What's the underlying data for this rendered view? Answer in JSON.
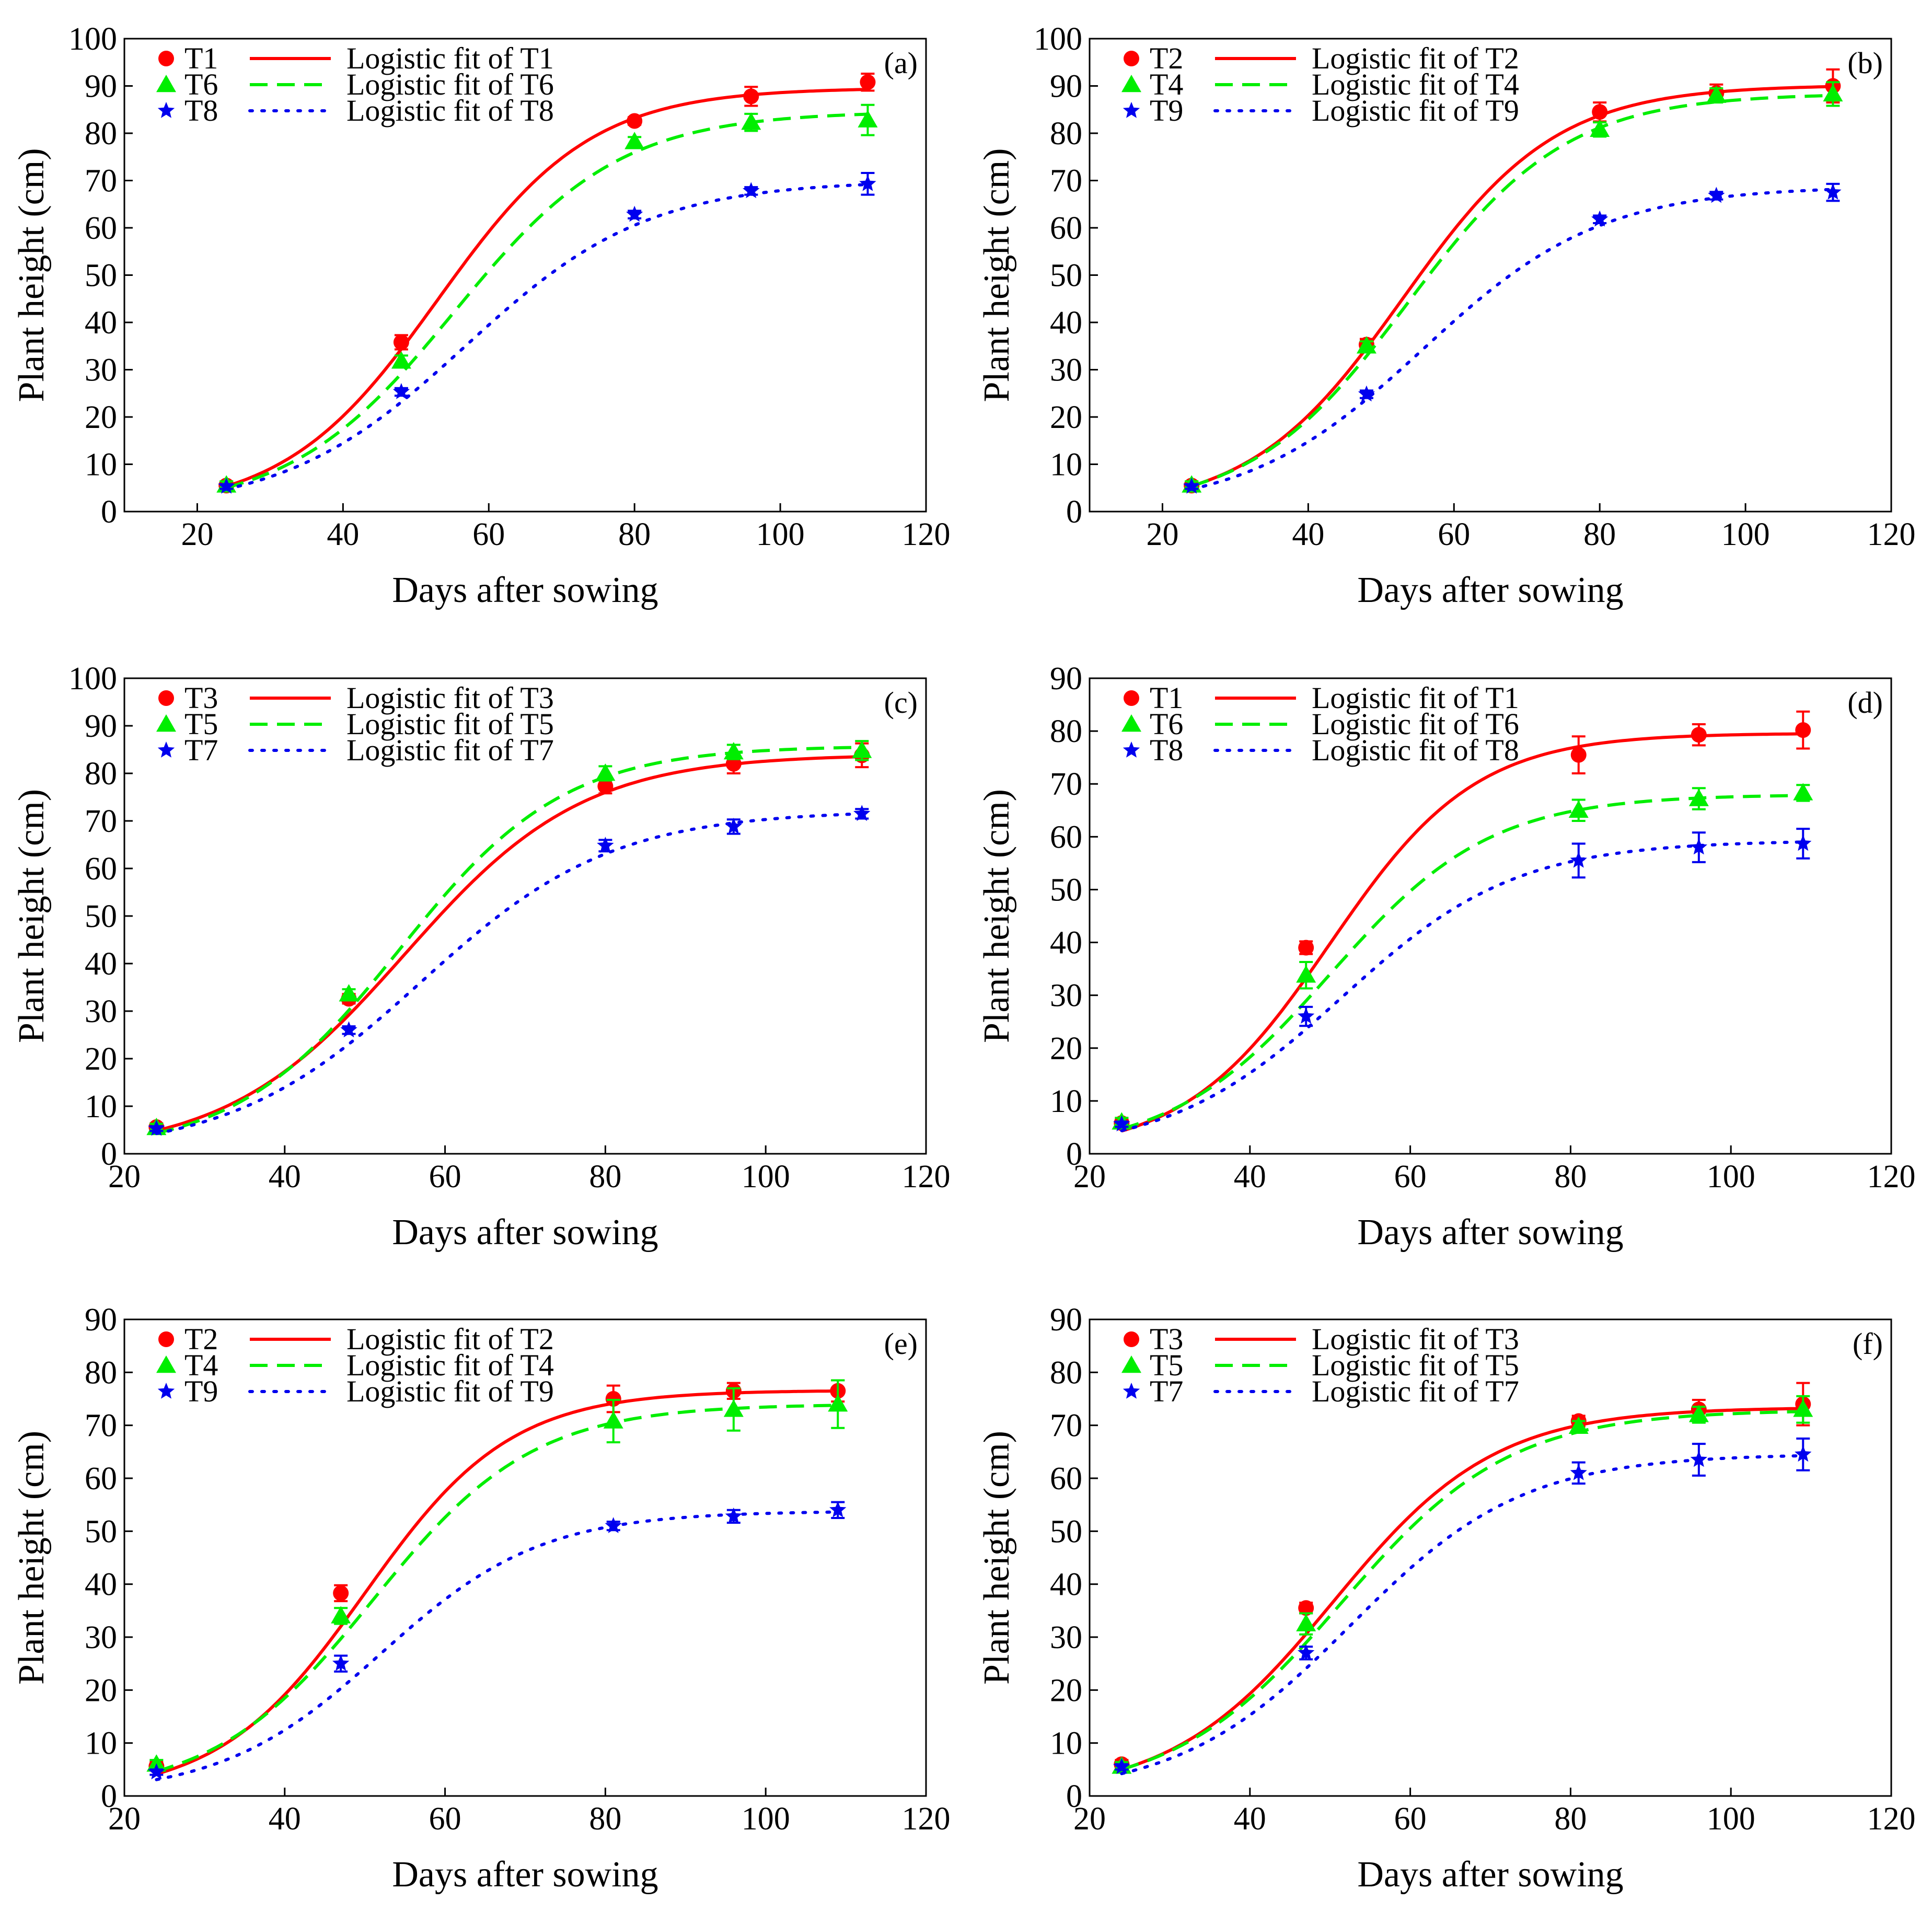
{
  "figure": {
    "description_free": true
  },
  "chart_data": [
    {
      "type": "line",
      "panel": "(a)",
      "xlabel": "Days after sowing",
      "ylabel": "Plant height (cm)",
      "xlim": [
        10,
        120
      ],
      "xticks": [
        20,
        40,
        60,
        80,
        100,
        120
      ],
      "ylim": [
        0,
        100
      ],
      "yticks": [
        0,
        10,
        20,
        30,
        40,
        50,
        60,
        70,
        80,
        90,
        100
      ],
      "series": [
        {
          "name": "T1",
          "fit_label": "Logistic fit of T1",
          "color": "#ff0000",
          "marker": "circle",
          "dash": "solid",
          "x": [
            24,
            48,
            80,
            96,
            112
          ],
          "y": [
            5.5,
            35.8,
            82.6,
            87.8,
            90.8
          ],
          "err": [
            0.8,
            1.5,
            0.8,
            2.0,
            1.8
          ],
          "fit": {
            "K": 89.6,
            "r": 0.095,
            "t0": 53.0
          }
        },
        {
          "name": "T6",
          "fit_label": "Logistic fit of T6",
          "color": "#00ee00",
          "marker": "triangle",
          "dash": "dashed",
          "x": [
            24,
            48,
            80,
            96,
            112
          ],
          "y": [
            5.6,
            31.8,
            78.2,
            82.3,
            82.8
          ],
          "err": [
            0.8,
            1.2,
            1.0,
            1.8,
            3.2
          ],
          "fit": {
            "K": 84.6,
            "r": 0.088,
            "t0": 55.3
          }
        },
        {
          "name": "T8",
          "fit_label": "Logistic fit of T8",
          "color": "#0000ee",
          "marker": "star",
          "dash": "dotted",
          "x": [
            24,
            48,
            80,
            96,
            112
          ],
          "y": [
            5.3,
            25.3,
            62.8,
            67.8,
            69.3
          ],
          "err": [
            0.5,
            0.8,
            0.8,
            0.8,
            2.3
          ],
          "fit": {
            "K": 70.0,
            "r": 0.08,
            "t0": 56.8
          }
        }
      ]
    },
    {
      "type": "line",
      "panel": "(b)",
      "xlabel": "Days after sowing",
      "ylabel": "Plant height (cm)",
      "xlim": [
        10,
        120
      ],
      "xticks": [
        20,
        40,
        60,
        80,
        100,
        120
      ],
      "ylim": [
        0,
        100
      ],
      "yticks": [
        0,
        10,
        20,
        30,
        40,
        50,
        60,
        70,
        80,
        90,
        100
      ],
      "series": [
        {
          "name": "T2",
          "fit_label": "Logistic fit of T2",
          "color": "#ff0000",
          "marker": "circle",
          "dash": "solid",
          "x": [
            24,
            48,
            80,
            96,
            112
          ],
          "y": [
            5.5,
            35.3,
            84.5,
            88.5,
            90.0
          ],
          "err": [
            0.8,
            1.2,
            2.0,
            1.8,
            3.5
          ],
          "fit": {
            "K": 90.2,
            "r": 0.095,
            "t0": 53.0
          }
        },
        {
          "name": "T4",
          "fit_label": "Logistic fit of T4",
          "color": "#00ee00",
          "marker": "triangle",
          "dash": "dashed",
          "x": [
            24,
            48,
            80,
            96,
            112
          ],
          "y": [
            5.6,
            35.0,
            80.8,
            88.0,
            88.3
          ],
          "err": [
            0.8,
            1.0,
            1.5,
            1.5,
            2.5
          ],
          "fit": {
            "K": 88.4,
            "r": 0.092,
            "t0": 53.7
          }
        },
        {
          "name": "T9",
          "fit_label": "Logistic fit of T9",
          "color": "#0000ee",
          "marker": "star",
          "dash": "dotted",
          "x": [
            24,
            48,
            80,
            96,
            112
          ],
          "y": [
            5.3,
            24.8,
            61.8,
            66.8,
            67.5
          ],
          "err": [
            0.5,
            0.8,
            0.8,
            0.8,
            1.8
          ],
          "fit": {
            "K": 68.8,
            "r": 0.082,
            "t0": 55.8
          }
        }
      ]
    },
    {
      "type": "line",
      "panel": "(c)",
      "xlabel": "Days after sowing",
      "ylabel": "Plant height (cm)",
      "xlim": [
        20,
        120
      ],
      "xticks": [
        20,
        40,
        60,
        80,
        100,
        120
      ],
      "ylim": [
        0,
        100
      ],
      "yticks": [
        0,
        10,
        20,
        30,
        40,
        50,
        60,
        70,
        80,
        90,
        100
      ],
      "series": [
        {
          "name": "T3",
          "fit_label": "Logistic fit of T3",
          "color": "#ff0000",
          "marker": "circle",
          "dash": "solid",
          "x": [
            24,
            48,
            80,
            96,
            112
          ],
          "y": [
            5.6,
            32.6,
            77.3,
            82.0,
            83.8
          ],
          "err": [
            0.8,
            1.0,
            1.5,
            2.0,
            2.5
          ],
          "fit": {
            "K": 84.0,
            "r": 0.09,
            "t0": 55.0
          }
        },
        {
          "name": "T5",
          "fit_label": "Logistic fit of T5",
          "color": "#00ee00",
          "marker": "triangle",
          "dash": "dashed",
          "x": [
            24,
            48,
            80,
            96,
            112
          ],
          "y": [
            5.5,
            33.6,
            80.0,
            84.5,
            84.8
          ],
          "err": [
            0.8,
            1.0,
            1.5,
            1.5,
            2.0
          ],
          "fit": {
            "K": 85.8,
            "r": 0.097,
            "t0": 54.3
          }
        },
        {
          "name": "T7",
          "fit_label": "Logistic fit of T7",
          "color": "#0000ee",
          "marker": "star",
          "dash": "dotted",
          "x": [
            24,
            48,
            80,
            96,
            112
          ],
          "y": [
            5.3,
            26.0,
            64.8,
            68.8,
            71.5
          ],
          "err": [
            0.5,
            0.8,
            1.2,
            1.5,
            1.0
          ],
          "fit": {
            "K": 72.2,
            "r": 0.084,
            "t0": 57.0
          }
        }
      ]
    },
    {
      "type": "line",
      "panel": "(d)",
      "xlabel": "Days after sowing",
      "ylabel": "Plant height (cm)",
      "xlim": [
        20,
        120
      ],
      "xticks": [
        20,
        40,
        60,
        80,
        100,
        120
      ],
      "ylim": [
        0,
        90
      ],
      "yticks": [
        0,
        10,
        20,
        30,
        40,
        50,
        60,
        70,
        80,
        90
      ],
      "series": [
        {
          "name": "T1",
          "fit_label": "Logistic fit of T1",
          "color": "#ff0000",
          "marker": "circle",
          "dash": "solid",
          "x": [
            24,
            47,
            81,
            96,
            109
          ],
          "y": [
            5.8,
            39.0,
            75.5,
            79.3,
            80.2
          ],
          "err": [
            0.8,
            1.2,
            3.5,
            2.0,
            3.5
          ],
          "fit": {
            "K": 79.6,
            "r": 0.11,
            "t0": 50.0
          }
        },
        {
          "name": "T6",
          "fit_label": "Logistic fit of T6",
          "color": "#00ee00",
          "marker": "triangle",
          "dash": "dashed",
          "x": [
            24,
            47,
            81,
            96,
            109
          ],
          "y": [
            6.0,
            33.8,
            65.0,
            67.2,
            68.3
          ],
          "err": [
            0.8,
            2.5,
            2.0,
            2.0,
            1.5
          ],
          "fit": {
            "K": 68.0,
            "r": 0.1,
            "t0": 50.0
          }
        },
        {
          "name": "T8",
          "fit_label": "Logistic fit of T8",
          "color": "#0000ee",
          "marker": "star",
          "dash": "dotted",
          "x": [
            24,
            47,
            81,
            96,
            109
          ],
          "y": [
            5.6,
            26.0,
            55.5,
            58.0,
            58.7
          ],
          "err": [
            0.5,
            1.8,
            3.2,
            2.8,
            2.8
          ],
          "fit": {
            "K": 59.3,
            "r": 0.092,
            "t0": 51.5
          }
        }
      ]
    },
    {
      "type": "line",
      "panel": "(e)",
      "xlabel": "Days after sowing",
      "ylabel": "Plant height (cm)",
      "xlim": [
        20,
        120
      ],
      "xticks": [
        20,
        40,
        60,
        80,
        100,
        120
      ],
      "ylim": [
        0,
        90
      ],
      "yticks": [
        0,
        10,
        20,
        30,
        40,
        50,
        60,
        70,
        80,
        90
      ],
      "series": [
        {
          "name": "T2",
          "fit_label": "Logistic fit of T2",
          "color": "#ff0000",
          "marker": "circle",
          "dash": "solid",
          "x": [
            24,
            47,
            81,
            96,
            109
          ],
          "y": [
            5.6,
            38.3,
            75.0,
            76.5,
            76.5
          ],
          "err": [
            0.8,
            1.5,
            2.5,
            1.5,
            2.0
          ],
          "fit": {
            "K": 76.6,
            "r": 0.11,
            "t0": 50.0
          }
        },
        {
          "name": "T4",
          "fit_label": "Logistic fit of T4",
          "color": "#00ee00",
          "marker": "triangle",
          "dash": "dashed",
          "x": [
            24,
            47,
            81,
            96,
            109
          ],
          "y": [
            6.0,
            34.0,
            70.8,
            73.0,
            74.0
          ],
          "err": [
            0.8,
            1.5,
            4.0,
            4.0,
            4.5
          ],
          "fit": {
            "K": 74.0,
            "r": 0.1,
            "t0": 51.0
          }
        },
        {
          "name": "T9",
          "fit_label": "Logistic fit of T9",
          "color": "#0000ee",
          "marker": "star",
          "dash": "dotted",
          "x": [
            24,
            47,
            81,
            96,
            109
          ],
          "y": [
            4.5,
            25.0,
            51.0,
            52.8,
            54.0
          ],
          "err": [
            0.5,
            1.5,
            0.8,
            1.2,
            1.5
          ],
          "fit": {
            "K": 53.8,
            "r": 0.1,
            "t0": 52.0
          }
        }
      ]
    },
    {
      "type": "line",
      "panel": "(f)",
      "xlabel": "Days after sowing",
      "ylabel": "Plant height (cm)",
      "xlim": [
        20,
        120
      ],
      "xticks": [
        20,
        40,
        60,
        80,
        100,
        120
      ],
      "ylim": [
        0,
        90
      ],
      "yticks": [
        0,
        10,
        20,
        30,
        40,
        50,
        60,
        70,
        80,
        90
      ],
      "series": [
        {
          "name": "T3",
          "fit_label": "Logistic fit of T3",
          "color": "#ff0000",
          "marker": "circle",
          "dash": "solid",
          "x": [
            24,
            47,
            81,
            96,
            109
          ],
          "y": [
            6.0,
            35.5,
            70.8,
            73.0,
            74.0
          ],
          "err": [
            0.8,
            1.0,
            1.0,
            1.8,
            4.0
          ],
          "fit": {
            "K": 73.4,
            "r": 0.099,
            "t0": 50.4
          }
        },
        {
          "name": "T5",
          "fit_label": "Logistic fit of T5",
          "color": "#00ee00",
          "marker": "triangle",
          "dash": "dashed",
          "x": [
            24,
            47,
            81,
            96,
            109
          ],
          "y": [
            5.6,
            32.5,
            69.8,
            72.0,
            73.0
          ],
          "err": [
            0.8,
            2.0,
            1.0,
            1.5,
            2.5
          ],
          "fit": {
            "K": 72.9,
            "r": 0.095,
            "t0": 51.4
          }
        },
        {
          "name": "T7",
          "fit_label": "Logistic fit of T7",
          "color": "#0000ee",
          "marker": "star",
          "dash": "dotted",
          "x": [
            24,
            47,
            81,
            96,
            109
          ],
          "y": [
            5.5,
            27.0,
            61.0,
            63.5,
            64.5
          ],
          "err": [
            0.5,
            1.2,
            2.0,
            3.0,
            3.0
          ],
          "fit": {
            "K": 64.6,
            "r": 0.093,
            "t0": 52.6
          }
        }
      ]
    }
  ]
}
